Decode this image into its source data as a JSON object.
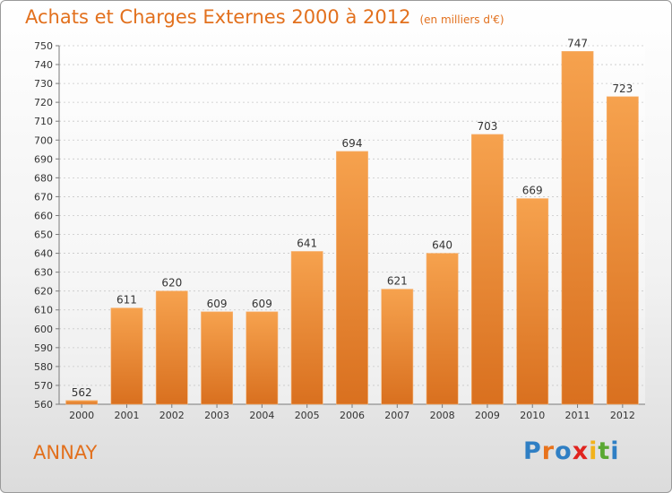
{
  "title": "Achats et Charges Externes 2000 à 2012",
  "unit": "(en milliers d'€)",
  "town": "ANNAY",
  "logo": {
    "letters": [
      "P",
      "r",
      "o",
      "x",
      "i",
      "t",
      "i"
    ],
    "colors": [
      "#2f7fc4",
      "#e8731c",
      "#2f7fc4",
      "#e0241f",
      "#f2b21b",
      "#5aa832",
      "#2f7fc4"
    ]
  },
  "colors": {
    "bar_top": "#f6a24e",
    "bar_bottom": "#d9701f",
    "text": "#e2701d"
  },
  "chart_data": {
    "type": "bar",
    "categories": [
      "2000",
      "2001",
      "2002",
      "2003",
      "2004",
      "2005",
      "2006",
      "2007",
      "2008",
      "2009",
      "2010",
      "2011",
      "2012"
    ],
    "values": [
      562,
      611,
      620,
      609,
      609,
      641,
      694,
      621,
      640,
      703,
      669,
      747,
      723
    ],
    "ylim": [
      560,
      750
    ],
    "yticks": [
      560,
      570,
      580,
      590,
      600,
      610,
      620,
      630,
      640,
      650,
      660,
      670,
      680,
      690,
      700,
      710,
      720,
      730,
      740,
      750
    ],
    "grid": true
  }
}
